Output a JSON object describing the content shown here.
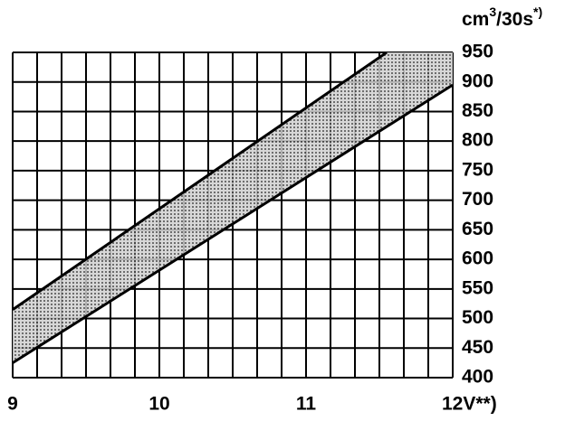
{
  "chart_data": {
    "type": "band",
    "y_label": {
      "unit": "cm",
      "exponent": "3",
      "per": "/30s",
      "note": "*)"
    },
    "upper": {
      "x": [
        9,
        11.55
      ],
      "values": [
        515,
        950
      ]
    },
    "lower": {
      "x": [
        9,
        12
      ],
      "values": [
        425,
        895
      ]
    },
    "color": "#9a9a9a",
    "xlim": [
      9,
      12
    ],
    "xticks": [
      9,
      10,
      11,
      {
        "value": 12,
        "label": "12V**)"
      }
    ],
    "ylim": [
      400,
      950
    ],
    "yticks": [
      400,
      450,
      500,
      550,
      600,
      650,
      700,
      750,
      800,
      850,
      900,
      950
    ],
    "grid": true,
    "x_grid_divisions": 6
  }
}
